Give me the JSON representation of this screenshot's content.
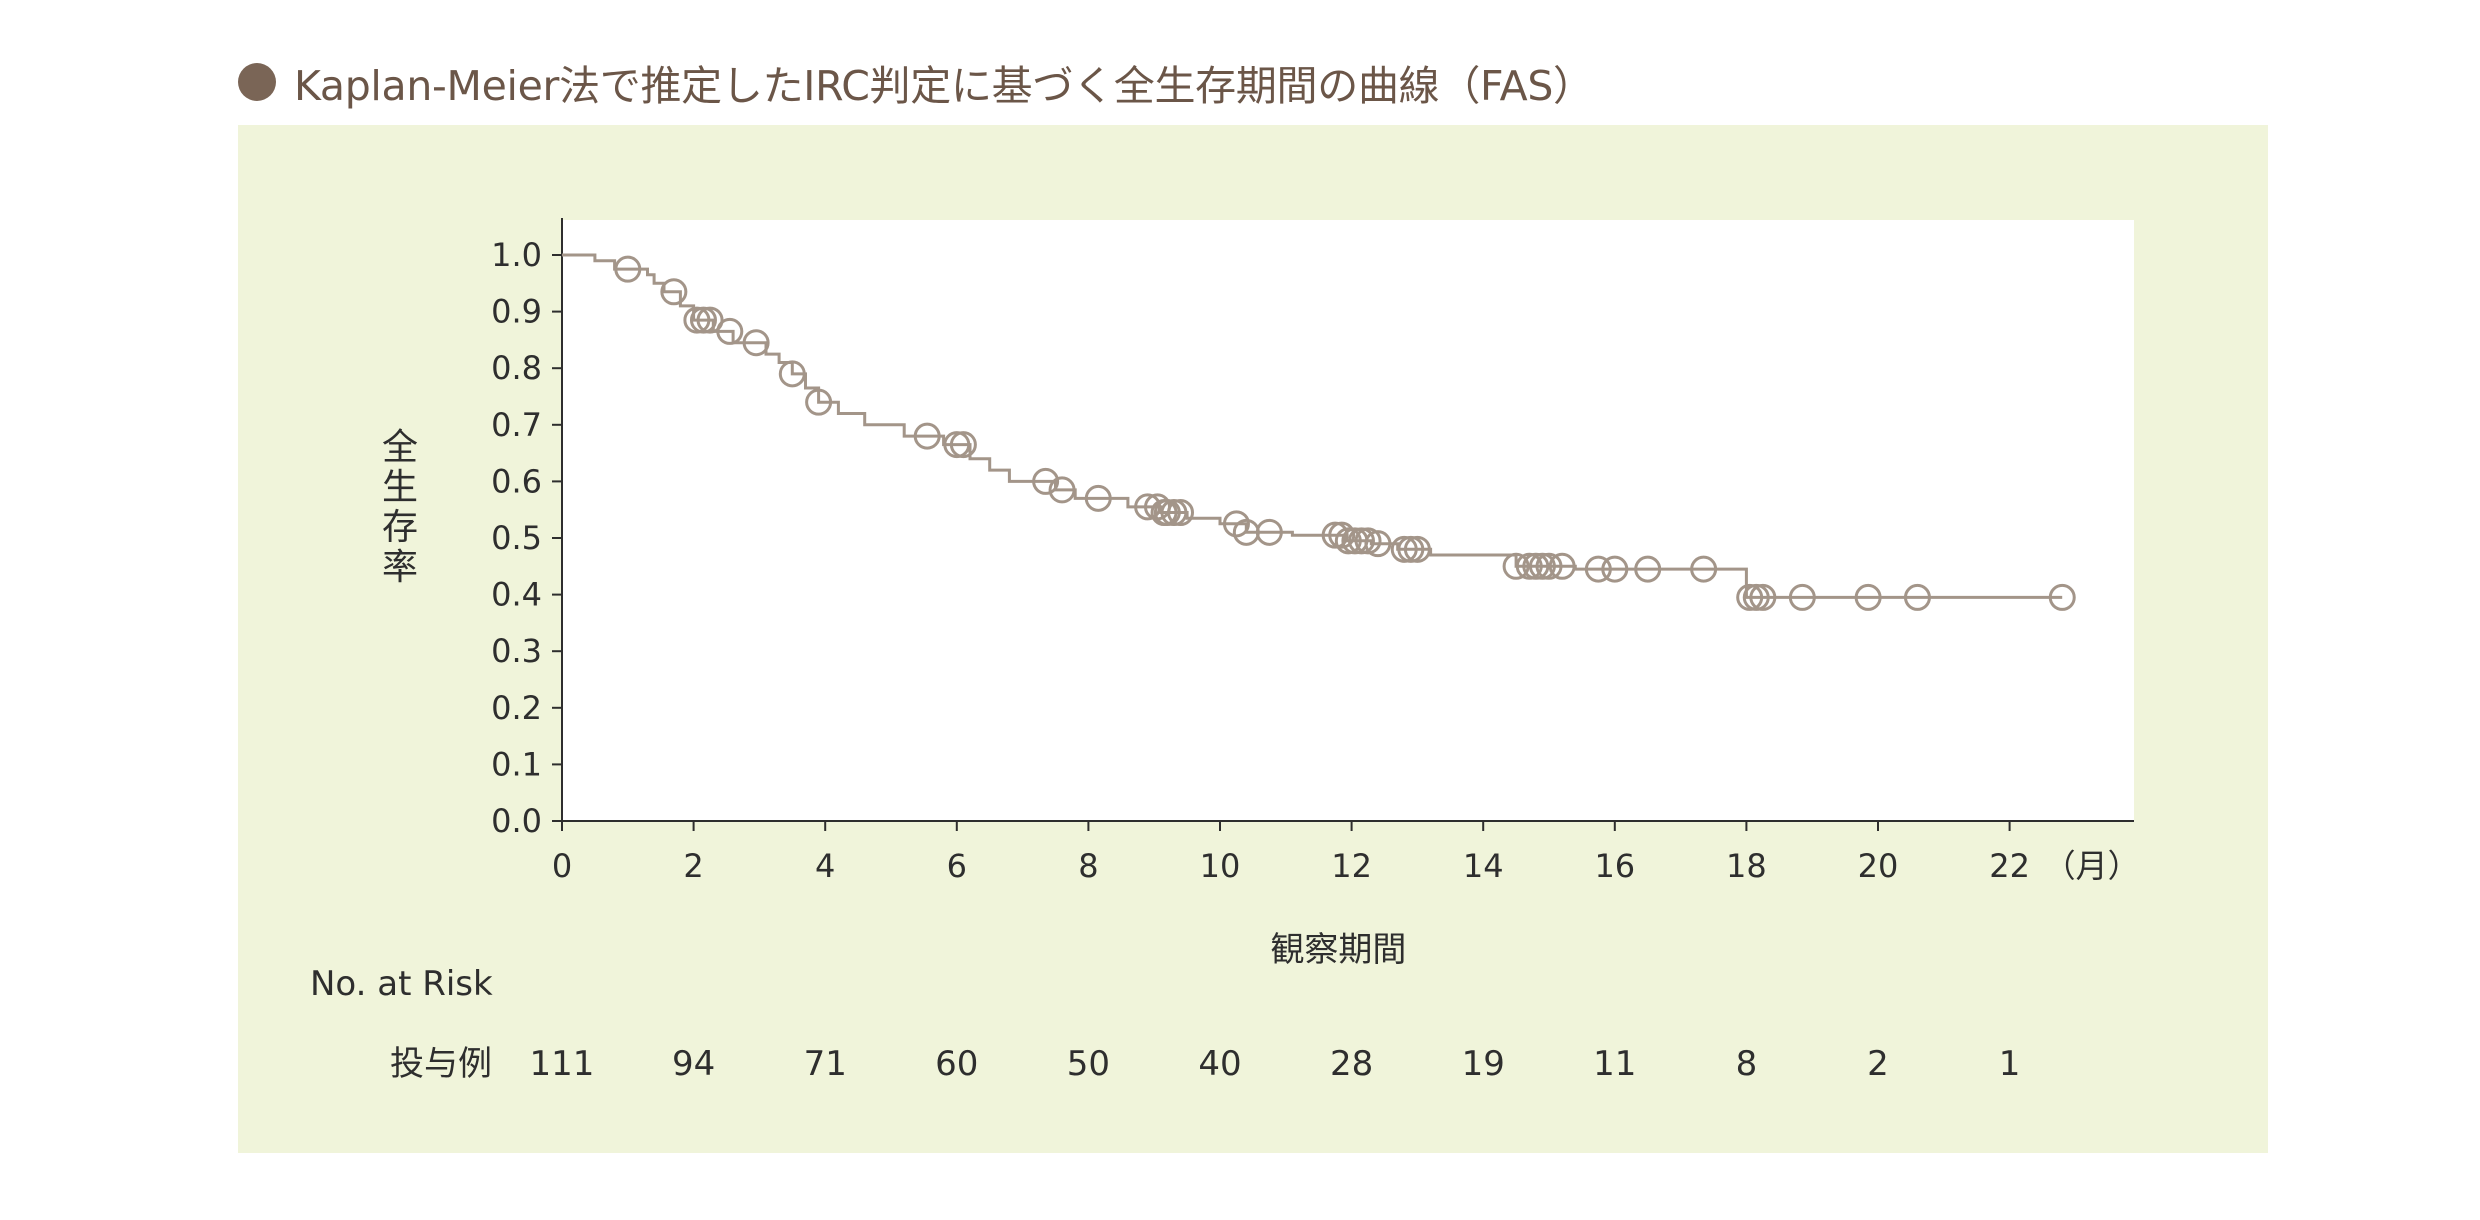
{
  "title": "Kaplan-Meier法で推定したIRC判定に基づく全生存期間の曲線（FAS）",
  "colors": {
    "panel_bg": "#f0f4da",
    "plot_bg": "#ffffff",
    "curve": "#a39589",
    "bullet": "#7a6556",
    "title_text": "#6b5648",
    "axis": "#2e2e2e"
  },
  "risk_table": {
    "header": "No. at Risk",
    "row_label": "投与例",
    "counts": [
      "111",
      "94",
      "71",
      "60",
      "50",
      "40",
      "28",
      "19",
      "11",
      "8",
      "2",
      "1"
    ]
  },
  "chart_data": {
    "type": "line",
    "subtype": "kaplan-meier",
    "xlabel": "観察期間",
    "x_unit": "（月）",
    "ylabel": "全生存率",
    "xlim": [
      0,
      23.5
    ],
    "ylim": [
      0,
      1.0
    ],
    "x_ticks": [
      0,
      2,
      4,
      6,
      8,
      10,
      12,
      14,
      16,
      18,
      20,
      22
    ],
    "y_ticks": [
      "0.0",
      "0.1",
      "0.2",
      "0.3",
      "0.4",
      "0.5",
      "0.6",
      "0.7",
      "0.8",
      "0.9",
      "1.0"
    ],
    "grid": false,
    "risk_times": [
      0,
      2,
      4,
      6,
      8,
      10,
      12,
      14,
      16,
      18,
      20,
      22
    ],
    "step_times": [
      0,
      0.5,
      0.8,
      1.3,
      1.4,
      1.55,
      1.8,
      2.0,
      2.3,
      2.6,
      3.1,
      3.3,
      3.5,
      3.7,
      3.9,
      4.2,
      4.6,
      5.2,
      5.8,
      6.2,
      6.5,
      6.8,
      7.5,
      7.8,
      8.6,
      9.1,
      9.5,
      10.0,
      10.4,
      11.1,
      11.9,
      12.3,
      12.7,
      13.2,
      14.5,
      15.4,
      18.0,
      22.8
    ],
    "step_surv": [
      1.0,
      0.99,
      0.975,
      0.965,
      0.95,
      0.935,
      0.91,
      0.885,
      0.865,
      0.845,
      0.825,
      0.81,
      0.79,
      0.765,
      0.74,
      0.72,
      0.7,
      0.68,
      0.665,
      0.64,
      0.62,
      0.6,
      0.585,
      0.57,
      0.555,
      0.545,
      0.535,
      0.525,
      0.51,
      0.505,
      0.495,
      0.49,
      0.48,
      0.47,
      0.45,
      0.445,
      0.395,
      0.395
    ],
    "censor_times": [
      1.0,
      1.7,
      2.05,
      2.15,
      2.25,
      2.55,
      2.95,
      3.5,
      3.9,
      5.55,
      6.0,
      6.1,
      7.35,
      7.6,
      8.15,
      8.9,
      9.05,
      9.15,
      9.2,
      9.3,
      9.4,
      10.25,
      10.4,
      10.75,
      11.75,
      11.85,
      11.95,
      12.05,
      12.15,
      12.25,
      12.4,
      12.8,
      12.9,
      13.0,
      14.5,
      14.7,
      14.8,
      14.9,
      15.0,
      15.2,
      15.75,
      16.0,
      16.5,
      17.35,
      18.05,
      18.15,
      18.25,
      18.85,
      19.85,
      20.6,
      22.8
    ]
  }
}
